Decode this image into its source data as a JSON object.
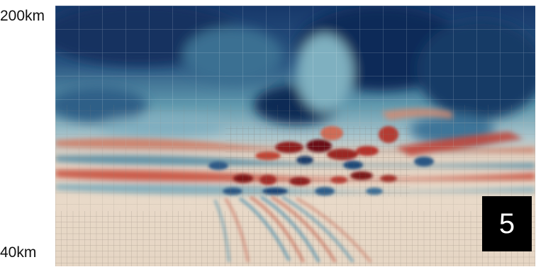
{
  "labels": {
    "top": "200km",
    "bottom": "40km"
  },
  "badge": {
    "text": "5"
  },
  "colors": {
    "dark_blue": "#0d2c56",
    "teal": "#4f90a6",
    "light": "#e4d8c8",
    "red": "#b5302a",
    "dark_red": "#6a0d12"
  }
}
